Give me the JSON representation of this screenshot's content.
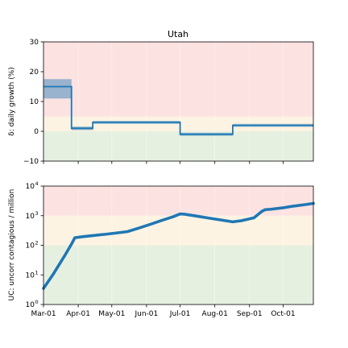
{
  "chart_data": [
    {
      "type": "line",
      "title": "Utah",
      "ylabel": "δ: daily growth (%)",
      "ylim": [
        -10,
        30
      ],
      "xlim": [
        "2020-03-01",
        "2020-10-28"
      ],
      "yticks": [
        -10,
        0,
        10,
        20,
        30
      ],
      "ytick_labels": [
        "−10",
        "0",
        "10",
        "20",
        "30"
      ],
      "xticks": [
        "2020-03-01",
        "2020-04-01",
        "2020-05-01",
        "2020-06-01",
        "2020-07-01",
        "2020-08-01",
        "2020-09-01",
        "2020-10-01"
      ],
      "xtick_labels": [],
      "bands": [
        {
          "from": 5,
          "to": 30,
          "color": "#fde2e2"
        },
        {
          "from": 0,
          "to": 5,
          "color": "#fdf3e3"
        },
        {
          "from": -10,
          "to": 0,
          "color": "#e6f0e1"
        }
      ],
      "series": [
        {
          "color": "#1f77b4",
          "segments": [
            {
              "x0": "2020-03-01",
              "x1": "2020-03-26",
              "y": 15,
              "lo": 11,
              "hi": 17.5
            },
            {
              "x0": "2020-03-26",
              "x1": "2020-04-14",
              "y": 1,
              "lo": 0.4,
              "hi": 1.6
            },
            {
              "x0": "2020-04-14",
              "x1": "2020-07-01",
              "y": 3,
              "lo": 2.5,
              "hi": 3.5
            },
            {
              "x0": "2020-07-01",
              "x1": "2020-08-17",
              "y": -1,
              "lo": -1.5,
              "hi": -0.5
            },
            {
              "x0": "2020-08-17",
              "x1": "2020-10-28",
              "y": 2,
              "lo": 1.5,
              "hi": 2.5
            }
          ]
        }
      ]
    },
    {
      "type": "line",
      "title": "",
      "ylabel": "UC: uncorr contagious / million",
      "yscale": "log",
      "ylim": [
        1,
        10000
      ],
      "xlim": [
        "2020-03-01",
        "2020-10-28"
      ],
      "yticks": [
        1,
        10,
        100,
        1000,
        10000
      ],
      "ytick_labels": [
        "10",
        "10",
        "10",
        "10",
        "10"
      ],
      "ytick_exponents": [
        "0",
        "1",
        "2",
        "3",
        "4"
      ],
      "xticks": [
        "2020-03-01",
        "2020-04-01",
        "2020-05-01",
        "2020-06-01",
        "2020-07-01",
        "2020-08-01",
        "2020-09-01",
        "2020-10-01"
      ],
      "xtick_labels": [
        "Mar-01",
        "Apr-01",
        "May-01",
        "Jun-01",
        "Jul-01",
        "Aug-01",
        "Sep-01",
        "Oct-01"
      ],
      "bands": [
        {
          "from": 1000,
          "to": 10000,
          "color": "#fde2e2"
        },
        {
          "from": 100,
          "to": 1000,
          "color": "#fdf3e3"
        },
        {
          "from": 1,
          "to": 100,
          "color": "#e6f0e1"
        }
      ],
      "series": [
        {
          "color": "#1f77b4",
          "x": [
            "2020-03-01",
            "2020-03-10",
            "2020-03-20",
            "2020-03-26",
            "2020-03-29",
            "2020-04-05",
            "2020-04-15",
            "2020-04-25",
            "2020-05-05",
            "2020-05-15",
            "2020-05-25",
            "2020-06-05",
            "2020-06-15",
            "2020-06-25",
            "2020-07-01",
            "2020-07-05",
            "2020-07-15",
            "2020-07-25",
            "2020-08-05",
            "2020-08-17",
            "2020-08-25",
            "2020-09-05",
            "2020-09-12",
            "2020-09-15",
            "2020-09-20",
            "2020-10-01",
            "2020-10-10",
            "2020-10-20",
            "2020-10-28"
          ],
          "y": [
            3.5,
            11,
            45,
            110,
            180,
            195,
            215,
            235,
            260,
            290,
            380,
            520,
            700,
            930,
            1150,
            1120,
            980,
            850,
            730,
            620,
            680,
            850,
            1400,
            1600,
            1650,
            1850,
            2100,
            2350,
            2600
          ]
        }
      ]
    }
  ]
}
